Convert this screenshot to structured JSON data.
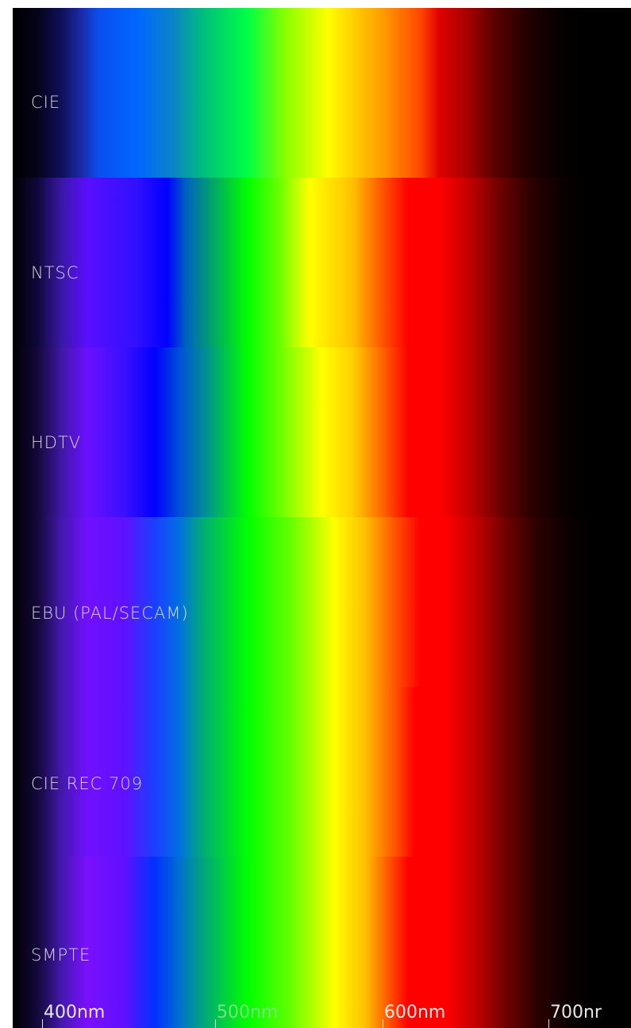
{
  "bands": [
    {
      "label": "CIE",
      "gradient": "linear-gradient(to right, #000000 0%, #05031a 4%, #10105a 8%, #1a2aa5 11%, #0a4ff0 14%, #0066ff 20%, #0a84c8 26%, #00c07a 31%, #00ff44 38%, #88ff00 44%, #ffff00 51%, #ffd000 55%, #ff9a00 60%, #ff4600 66%, #e00000 69%, #a00000 74%, #5a0000 78%, #250000 83%, #080000 88%, #000000 92%, #000000 100%)"
    },
    {
      "label": "NTSC",
      "gradient": "linear-gradient(to right, #000000 0%, #10083a 4%, #3a18a8 8%, #5a0eff 12%, #3010ff 20%, #0000ff 25%, #0060c0 28%, #00a070 32%, #00ff00 38%, #66ff00 43%, #ffff00 48%, #ffc000 55%, #ff5000 60%, #ff0000 64%, #ff0000 69%, #c00000 74%, #6a0000 79%, #2a0000 84%, #0a0000 89%, #000000 93%, #000000 100%)"
    },
    {
      "label": "HDTV",
      "gradient": "linear-gradient(to right, #000000 0%, #14083a 4%, #4018a8 8%, #6a10ff 12%, #3a10ff 18%, #0000ff 23%, #0050d8 27%, #008c98 31%, #00ff00 38%, #66ff00 43%, #ffff00 50%, #ffd000 55%, #ff6000 60%, #ff0000 64%, #ff0000 69%, #c00000 74%, #6a0000 79%, #2a0000 84%, #0a0000 89%, #000000 93%, #000000 100%)"
    },
    {
      "label": "EBU (PAL/SECAM)",
      "gradient": "linear-gradient(to right, #000000 0%, #14083a 4%, #4418b0 8%, #7010ff 12%, #6010ff 18%, #1a40ff 23%, #0070e0 27%, #00b070 31%, #00ff00 38%, #66ff00 45%, #ffff00 52%, #ffc000 57%, #ff5000 62%, #ff0000 66%, #ff0000 70%, #c00000 75%, #6a0000 80%, #2a0000 85%, #0a0000 90%, #000000 94%, #000000 100%)"
    },
    {
      "label": "CIE REC 709",
      "gradient": "linear-gradient(to right, #000000 0%, #14083a 4%, #4418b0 8%, #7010ff 12%, #6010ff 18%, #1a40ff 23%, #0070e0 27%, #00b070 31%, #00ff00 38%, #66ff00 45%, #ffff00 52%, #ffc000 57%, #ff5000 62%, #ff0000 65%, #ff0000 70%, #c00000 75%, #6a0000 80%, #2a0000 85%, #0a0000 90%, #000000 94%, #000000 100%)"
    },
    {
      "label": "SMPTE",
      "gradient": "linear-gradient(to right, #000000 0%, #14083a 4%, #4418b0 8%, #7a10ff 12%, #6010ff 18%, #0030ff 23%, #0070d0 27%, #00a878 31%, #00ff00 38%, #66ff00 45%, #ffff00 52%, #ffc000 57%, #ff5000 61%, #ff0000 64%, #ff0000 70%, #c00000 75%, #6a0000 80%, #2a0000 85%, #0a0000 90%, #000000 94%, #000000 100%)"
    }
  ],
  "axis": {
    "ticks": [
      {
        "label": "400nm",
        "color": "#e8e8e8"
      },
      {
        "label": "500nm",
        "color": "#7ce07c"
      },
      {
        "label": "600nm",
        "color": "#ffe8e8"
      },
      {
        "label": "700nr",
        "color": "#e8e8e8"
      }
    ]
  }
}
